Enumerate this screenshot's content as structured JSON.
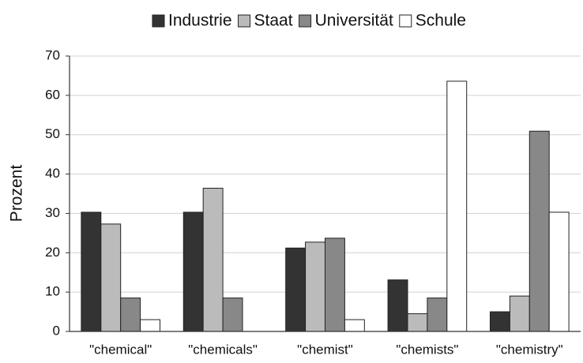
{
  "chart_data": {
    "type": "bar",
    "y_label": "Prozent",
    "categories": [
      "\"chemical\"",
      "\"chemicals\"",
      "\"chemist\"",
      "\"chemists\"",
      "\"chemistry\""
    ],
    "series": [
      {
        "name": "Industrie",
        "color": "#333333",
        "values": [
          30.3,
          30.3,
          21.2,
          13.1,
          5
        ]
      },
      {
        "name": "Staat",
        "color": "#bbbbbb",
        "values": [
          27.3,
          36.4,
          22.7,
          4.5,
          9
        ]
      },
      {
        "name": "Universität",
        "color": "#888888",
        "values": [
          8.5,
          8.5,
          23.7,
          8.5,
          50.9
        ]
      },
      {
        "name": "Schule",
        "color": "#ffffff",
        "values": [
          3,
          0,
          3,
          63.6,
          30.3
        ]
      }
    ],
    "ylim": [
      0,
      70
    ],
    "yticks": [
      0,
      10,
      20,
      30,
      40,
      50,
      60,
      70
    ],
    "grid": true,
    "legend": "top"
  }
}
